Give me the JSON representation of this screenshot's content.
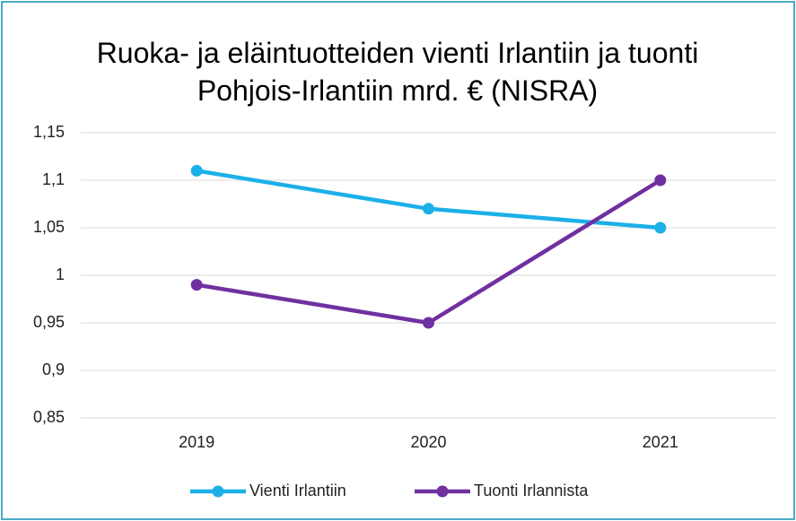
{
  "chart_data": {
    "type": "line",
    "title": "Ruoka- ja eläintuotteiden vienti Irlantiin ja tuonti Pohjois-Irlantiin mrd. € (NISRA)",
    "categories": [
      "2019",
      "2020",
      "2021"
    ],
    "series": [
      {
        "name": "Vienti Irlantiin",
        "color": "#1cb0e8",
        "values": [
          1.11,
          1.07,
          1.05
        ]
      },
      {
        "name": "Tuonti Irlannista",
        "color": "#7030a0",
        "values": [
          0.99,
          0.95,
          1.1
        ]
      }
    ],
    "ylim": [
      0.85,
      1.15
    ],
    "yticks": [
      {
        "value": 0.85,
        "label": "0,85"
      },
      {
        "value": 0.9,
        "label": "0,9"
      },
      {
        "value": 0.95,
        "label": "0,95"
      },
      1,
      {
        "value": 1.05,
        "label": "1,05"
      },
      {
        "value": 1.1,
        "label": "1,1"
      },
      {
        "value": 1.15,
        "label": "1,15"
      }
    ],
    "grid": true,
    "legend": "bottom"
  }
}
